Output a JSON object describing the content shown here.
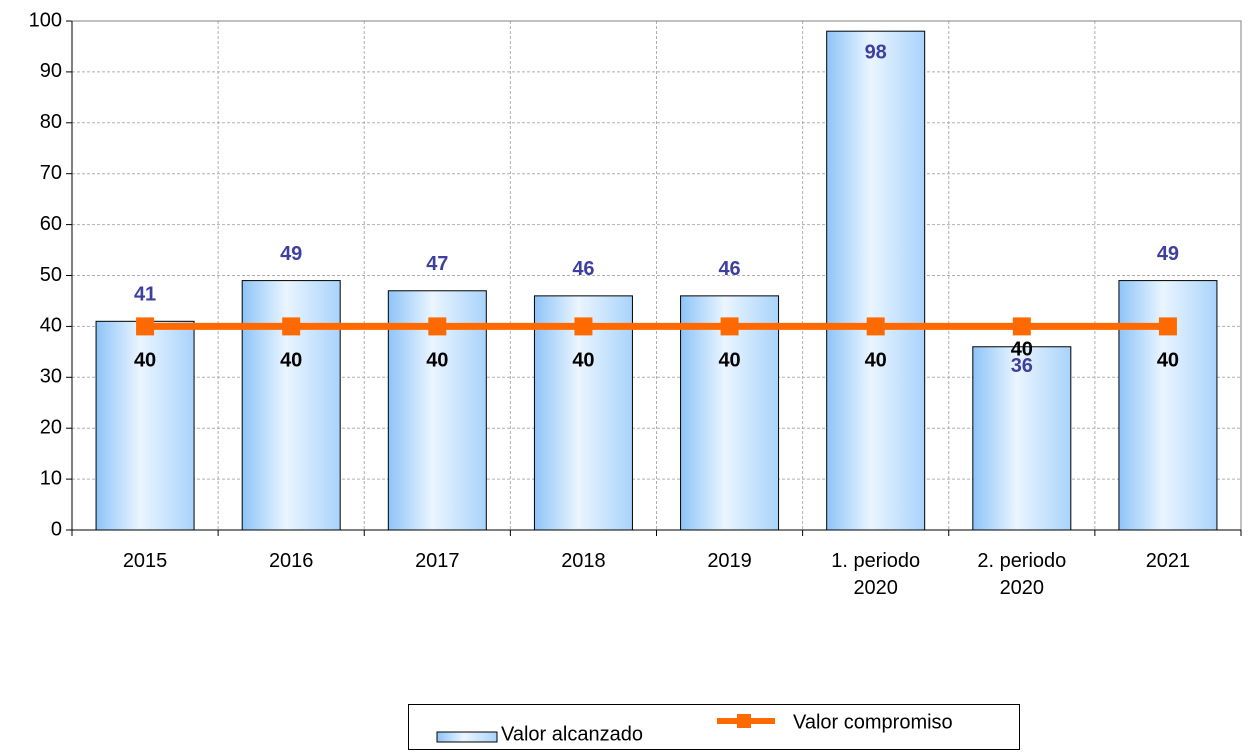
{
  "chart_data": {
    "type": "bar-line",
    "categories": [
      "2015",
      "2016",
      "2017",
      "2018",
      "2019",
      "1. periodo 2020",
      "2. periodo 2020",
      "2021"
    ],
    "series": [
      {
        "name": "Valor alcanzado",
        "type": "bar",
        "color": "#a9d3fb",
        "label_color": "#3f3f9f",
        "values": [
          41,
          49,
          47,
          46,
          46,
          98,
          36,
          49
        ]
      },
      {
        "name": "Valor compromiso",
        "type": "line",
        "color": "#ff6a00",
        "label_color": "#000000",
        "values": [
          40,
          40,
          40,
          40,
          40,
          40,
          40,
          40
        ]
      }
    ],
    "ylim": [
      0,
      100
    ],
    "yticks": [
      0,
      10,
      20,
      30,
      40,
      50,
      60,
      70,
      80,
      90,
      100
    ],
    "grid": true,
    "legend": "bottom"
  }
}
